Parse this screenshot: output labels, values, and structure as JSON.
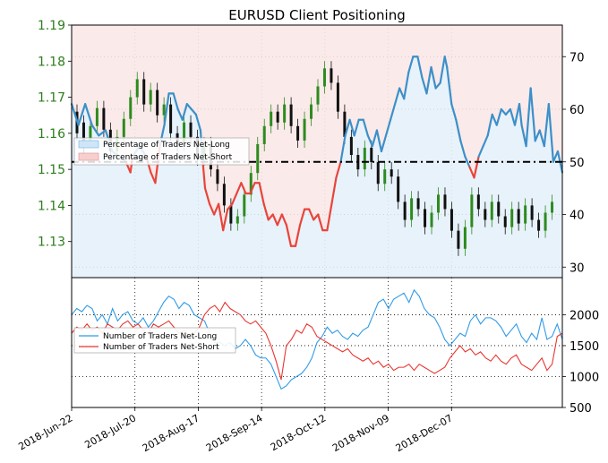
{
  "chart_data": [
    {
      "type": "line",
      "title": "EURUSD Client Positioning",
      "price_axis": {
        "side": "left",
        "ylim": [
          1.12,
          1.19
        ],
        "ticks": [
          "1.19",
          "1.18",
          "1.17",
          "1.16",
          "1.15",
          "1.14",
          "1.13"
        ],
        "color": "#2e7d1e"
      },
      "sentiment_axis": {
        "side": "right",
        "ylim": [
          28,
          76
        ],
        "ticks": [
          "70",
          "60",
          "50",
          "40",
          "30"
        ]
      },
      "legend": {
        "placement": "left",
        "items": [
          "Percentage of Traders Net-Long",
          "Percentage of Traders Net-Short"
        ]
      },
      "reference_line": 50,
      "series_sentiment": [
        {
          "x": 0,
          "y": 61
        },
        {
          "x": 3,
          "y": 57
        },
        {
          "x": 6,
          "y": 61
        },
        {
          "x": 9,
          "y": 57
        },
        {
          "x": 12,
          "y": 55
        },
        {
          "x": 15,
          "y": 56
        },
        {
          "x": 18,
          "y": 52
        },
        {
          "x": 21,
          "y": 51
        },
        {
          "x": 24,
          "y": 50
        },
        {
          "x": 26,
          "y": 48
        },
        {
          "x": 27,
          "y": 51
        },
        {
          "x": 30,
          "y": 53
        },
        {
          "x": 33,
          "y": 51
        },
        {
          "x": 35,
          "y": 48
        },
        {
          "x": 37,
          "y": 46
        },
        {
          "x": 39,
          "y": 53
        },
        {
          "x": 41,
          "y": 57
        },
        {
          "x": 43,
          "y": 63
        },
        {
          "x": 45,
          "y": 63
        },
        {
          "x": 47,
          "y": 60
        },
        {
          "x": 49,
          "y": 58
        },
        {
          "x": 51,
          "y": 61
        },
        {
          "x": 53,
          "y": 60
        },
        {
          "x": 55,
          "y": 59
        },
        {
          "x": 57,
          "y": 56
        },
        {
          "x": 58,
          "y": 50
        },
        {
          "x": 59,
          "y": 45
        },
        {
          "x": 61,
          "y": 42
        },
        {
          "x": 63,
          "y": 40
        },
        {
          "x": 65,
          "y": 42
        },
        {
          "x": 67,
          "y": 37
        },
        {
          "x": 69,
          "y": 41
        },
        {
          "x": 71,
          "y": 42
        },
        {
          "x": 73,
          "y": 44
        },
        {
          "x": 75,
          "y": 46
        },
        {
          "x": 77,
          "y": 44
        },
        {
          "x": 79,
          "y": 44
        },
        {
          "x": 81,
          "y": 46
        },
        {
          "x": 83,
          "y": 46
        },
        {
          "x": 85,
          "y": 42
        },
        {
          "x": 87,
          "y": 39
        },
        {
          "x": 89,
          "y": 40
        },
        {
          "x": 91,
          "y": 38
        },
        {
          "x": 93,
          "y": 40
        },
        {
          "x": 95,
          "y": 38
        },
        {
          "x": 97,
          "y": 34
        },
        {
          "x": 99,
          "y": 34
        },
        {
          "x": 101,
          "y": 38
        },
        {
          "x": 103,
          "y": 41
        },
        {
          "x": 105,
          "y": 41
        },
        {
          "x": 107,
          "y": 39
        },
        {
          "x": 109,
          "y": 40
        },
        {
          "x": 111,
          "y": 37
        },
        {
          "x": 113,
          "y": 37
        },
        {
          "x": 115,
          "y": 42
        },
        {
          "x": 117,
          "y": 47
        },
        {
          "x": 119,
          "y": 50
        },
        {
          "x": 121,
          "y": 55
        },
        {
          "x": 123,
          "y": 58
        },
        {
          "x": 125,
          "y": 55
        },
        {
          "x": 127,
          "y": 58
        },
        {
          "x": 129,
          "y": 58
        },
        {
          "x": 131,
          "y": 55
        },
        {
          "x": 133,
          "y": 53
        },
        {
          "x": 135,
          "y": 56
        },
        {
          "x": 137,
          "y": 52
        },
        {
          "x": 139,
          "y": 55
        },
        {
          "x": 141,
          "y": 58
        },
        {
          "x": 143,
          "y": 61
        },
        {
          "x": 145,
          "y": 64
        },
        {
          "x": 147,
          "y": 62
        },
        {
          "x": 149,
          "y": 67
        },
        {
          "x": 151,
          "y": 70
        },
        {
          "x": 153,
          "y": 70
        },
        {
          "x": 155,
          "y": 66
        },
        {
          "x": 157,
          "y": 63
        },
        {
          "x": 159,
          "y": 68
        },
        {
          "x": 161,
          "y": 64
        },
        {
          "x": 163,
          "y": 65
        },
        {
          "x": 165,
          "y": 70
        },
        {
          "x": 166,
          "y": 68
        },
        {
          "x": 168,
          "y": 61
        },
        {
          "x": 170,
          "y": 58
        },
        {
          "x": 172,
          "y": 54
        },
        {
          "x": 174,
          "y": 51
        },
        {
          "x": 176,
          "y": 49
        },
        {
          "x": 178,
          "y": 47
        },
        {
          "x": 180,
          "y": 51
        },
        {
          "x": 182,
          "y": 53
        },
        {
          "x": 184,
          "y": 55
        },
        {
          "x": 186,
          "y": 59
        },
        {
          "x": 188,
          "y": 57
        },
        {
          "x": 190,
          "y": 60
        },
        {
          "x": 192,
          "y": 59
        },
        {
          "x": 194,
          "y": 60
        },
        {
          "x": 196,
          "y": 57
        },
        {
          "x": 198,
          "y": 61
        },
        {
          "x": 199,
          "y": 57
        },
        {
          "x": 201,
          "y": 53
        },
        {
          "x": 203,
          "y": 64
        },
        {
          "x": 205,
          "y": 54
        },
        {
          "x": 207,
          "y": 56
        },
        {
          "x": 209,
          "y": 53
        },
        {
          "x": 211,
          "y": 61
        },
        {
          "x": 213,
          "y": 50
        },
        {
          "x": 215,
          "y": 52
        },
        {
          "x": 217,
          "y": 48
        }
      ],
      "price_candles": [
        [
          1.166,
          1.16
        ],
        [
          1.163,
          1.156
        ],
        [
          1.158,
          1.162
        ],
        [
          1.162,
          1.167
        ],
        [
          1.167,
          1.161
        ],
        [
          1.161,
          1.155
        ],
        [
          1.155,
          1.159
        ],
        [
          1.159,
          1.164
        ],
        [
          1.164,
          1.17
        ],
        [
          1.17,
          1.175
        ],
        [
          1.175,
          1.168
        ],
        [
          1.168,
          1.172
        ],
        [
          1.172,
          1.165
        ],
        [
          1.165,
          1.168
        ],
        [
          1.168,
          1.16
        ],
        [
          1.16,
          1.157
        ],
        [
          1.157,
          1.163
        ],
        [
          1.163,
          1.159
        ],
        [
          1.159,
          1.153
        ],
        [
          1.153,
          1.157
        ],
        [
          1.157,
          1.15
        ],
        [
          1.15,
          1.146
        ],
        [
          1.146,
          1.14
        ],
        [
          1.14,
          1.135
        ],
        [
          1.135,
          1.137
        ],
        [
          1.137,
          1.143
        ],
        [
          1.143,
          1.149
        ],
        [
          1.149,
          1.157
        ],
        [
          1.157,
          1.162
        ],
        [
          1.162,
          1.166
        ],
        [
          1.166,
          1.163
        ],
        [
          1.163,
          1.168
        ],
        [
          1.168,
          1.162
        ],
        [
          1.162,
          1.158
        ],
        [
          1.158,
          1.164
        ],
        [
          1.164,
          1.168
        ],
        [
          1.168,
          1.173
        ],
        [
          1.173,
          1.178
        ],
        [
          1.178,
          1.174
        ],
        [
          1.174,
          1.166
        ],
        [
          1.166,
          1.159
        ],
        [
          1.159,
          1.154
        ],
        [
          1.154,
          1.15
        ],
        [
          1.15,
          1.156
        ],
        [
          1.156,
          1.152
        ],
        [
          1.152,
          1.146
        ],
        [
          1.146,
          1.15
        ],
        [
          1.15,
          1.148
        ],
        [
          1.148,
          1.141
        ],
        [
          1.141,
          1.136
        ],
        [
          1.136,
          1.142
        ],
        [
          1.142,
          1.139
        ],
        [
          1.139,
          1.134
        ],
        [
          1.134,
          1.138
        ],
        [
          1.138,
          1.143
        ],
        [
          1.143,
          1.139
        ],
        [
          1.139,
          1.133
        ],
        [
          1.133,
          1.128
        ],
        [
          1.128,
          1.134
        ],
        [
          1.134,
          1.143
        ],
        [
          1.143,
          1.139
        ],
        [
          1.139,
          1.136
        ],
        [
          1.136,
          1.141
        ],
        [
          1.141,
          1.137
        ],
        [
          1.137,
          1.134
        ],
        [
          1.134,
          1.139
        ],
        [
          1.139,
          1.135
        ],
        [
          1.135,
          1.14
        ],
        [
          1.14,
          1.136
        ],
        [
          1.136,
          1.133
        ],
        [
          1.133,
          1.138
        ],
        [
          1.138,
          1.141
        ]
      ]
    },
    {
      "type": "line",
      "yticks": [
        "2000",
        "1500",
        "1000",
        "500"
      ],
      "ylim": [
        500,
        2600
      ],
      "legend": {
        "placement": "left",
        "items": [
          "Number of Traders Net-Long",
          "Number of Traders Net-Short"
        ]
      },
      "x_tick_labels": [
        "2018-Jun-22",
        "2018-Jul-20",
        "2018-Aug-17",
        "2018-Sep-14",
        "2018-Oct-12",
        "2018-Nov-09",
        "2018-Dec-07"
      ],
      "series": [
        {
          "name": "Number of Traders Net-Long",
          "color": "#2f9be8",
          "values": [
            2000,
            2100,
            2050,
            2150,
            2100,
            1900,
            2000,
            1850,
            2100,
            1900,
            2000,
            2050,
            1900,
            1850,
            1950,
            1800,
            1900,
            2050,
            2200,
            2300,
            2250,
            2100,
            2200,
            2150,
            2000,
            1950,
            1900,
            1700,
            1550,
            1550,
            1500,
            1550,
            1450,
            1500,
            1600,
            1500,
            1350,
            1300,
            1300,
            1200,
            1000,
            800,
            850,
            950,
            1000,
            1050,
            1150,
            1300,
            1550,
            1650,
            1800,
            1700,
            1750,
            1650,
            1600,
            1700,
            1650,
            1750,
            1800,
            2000,
            2200,
            2250,
            2100,
            2250,
            2300,
            2350,
            2200,
            2400,
            2300,
            2100,
            2000,
            1950,
            1800,
            1600,
            1500,
            1600,
            1700,
            1650,
            1900,
            2000,
            1850,
            1950,
            1950,
            1900,
            1800,
            1650,
            1750,
            1850,
            1650,
            1550,
            1700,
            1600,
            1950,
            1600,
            1650,
            1850,
            1600
          ]
        },
        {
          "name": "Number of Traders Net-Short",
          "color": "#e8352f",
          "values": [
            1700,
            1800,
            1750,
            1850,
            1750,
            1800,
            1700,
            1850,
            1800,
            1750,
            1850,
            1900,
            1800,
            1850,
            1750,
            1700,
            1850,
            1800,
            1850,
            1900,
            1800,
            1700,
            1750,
            1650,
            1700,
            1800,
            2000,
            2100,
            2150,
            2050,
            2200,
            2100,
            2050,
            2000,
            1900,
            1850,
            1900,
            1800,
            1700,
            1500,
            1250,
            950,
            1500,
            1600,
            1750,
            1700,
            1850,
            1800,
            1650,
            1600,
            1550,
            1500,
            1450,
            1400,
            1450,
            1350,
            1300,
            1250,
            1300,
            1200,
            1250,
            1150,
            1200,
            1100,
            1150,
            1150,
            1200,
            1100,
            1200,
            1150,
            1100,
            1050,
            1100,
            1150,
            1300,
            1400,
            1500,
            1400,
            1450,
            1350,
            1400,
            1300,
            1250,
            1350,
            1250,
            1200,
            1300,
            1350,
            1200,
            1150,
            1100,
            1200,
            1300,
            1100,
            1200,
            1650,
            1700
          ]
        }
      ]
    }
  ]
}
